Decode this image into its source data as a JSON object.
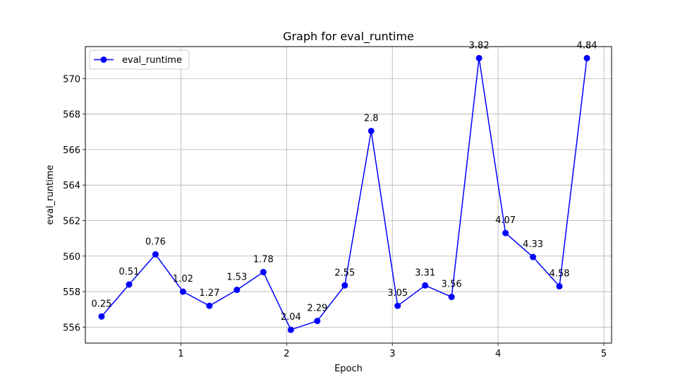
{
  "chart_data": {
    "type": "line",
    "title": "Graph for eval_runtime",
    "xlabel": "Epoch",
    "ylabel": "eval_runtime",
    "xlim": [
      0.0967,
      5.0733
    ],
    "ylim": [
      555.1,
      571.8
    ],
    "x_ticks": [
      1,
      2,
      3,
      4,
      5
    ],
    "y_ticks": [
      556,
      558,
      560,
      562,
      564,
      566,
      568,
      570
    ],
    "grid": true,
    "legend_position": "top-left",
    "series": [
      {
        "name": "eval_runtime",
        "color": "#0000ff",
        "marker": "circle",
        "x": [
          0.25,
          0.51,
          0.76,
          1.02,
          1.27,
          1.53,
          1.78,
          2.04,
          2.29,
          2.55,
          2.8,
          3.05,
          3.31,
          3.56,
          3.82,
          4.07,
          4.33,
          4.58,
          4.84
        ],
        "values": [
          556.6,
          558.4,
          560.1,
          558.0,
          557.2,
          558.1,
          559.1,
          555.85,
          556.35,
          558.35,
          567.05,
          557.2,
          558.35,
          557.7,
          571.15,
          561.3,
          559.95,
          558.3,
          571.15
        ],
        "point_labels": [
          "0.25",
          "0.51",
          "0.76",
          "1.02",
          "1.27",
          "1.53",
          "1.78",
          "2.04",
          "2.29",
          "2.55",
          "2.8",
          "3.05",
          "3.31",
          "3.56",
          "3.82",
          "4.07",
          "4.33",
          "4.58",
          "4.84"
        ]
      }
    ]
  }
}
